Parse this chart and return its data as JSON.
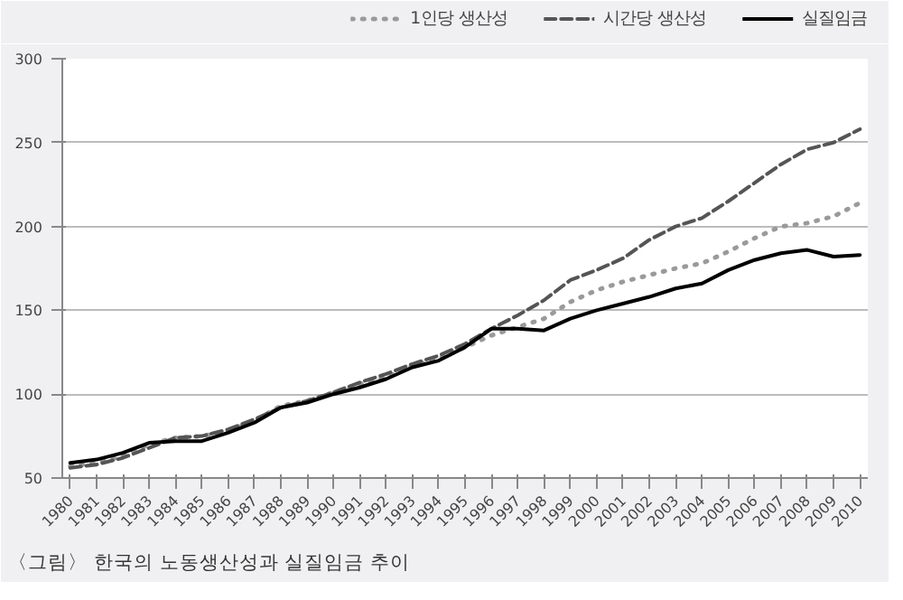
{
  "chart_data": {
    "type": "line",
    "categories": [
      "1980",
      "1981",
      "1982",
      "1983",
      "1984",
      "1985",
      "1986",
      "1987",
      "1988",
      "1989",
      "1990",
      "1991",
      "1992",
      "1993",
      "1994",
      "1995",
      "1996",
      "1997",
      "1998",
      "1999",
      "2000",
      "2001",
      "2002",
      "2003",
      "2004",
      "2005",
      "2006",
      "2007",
      "2008",
      "2009",
      "2010"
    ],
    "series": [
      {
        "name": "1인당 생산성",
        "color": "#9a9a9a",
        "line_style": "dotted",
        "values": [
          57,
          59,
          63,
          70,
          74,
          75,
          78,
          84,
          93,
          96,
          101,
          106,
          110,
          117,
          121,
          128,
          135,
          140,
          145,
          155,
          162,
          167,
          171,
          175,
          178,
          185,
          193,
          200,
          202,
          206,
          214
        ]
      },
      {
        "name": "시간당 생산성",
        "color": "#555555",
        "line_style": "dashed",
        "values": [
          56,
          58,
          62,
          68,
          74,
          75,
          79,
          85,
          92,
          96,
          101,
          107,
          112,
          118,
          123,
          130,
          139,
          147,
          156,
          168,
          174,
          181,
          192,
          200,
          205,
          215,
          226,
          237,
          246,
          250,
          258
        ]
      },
      {
        "name": "실질임금",
        "color": "#000000",
        "line_style": "solid",
        "values": [
          59,
          61,
          65,
          71,
          72,
          72,
          77,
          83,
          92,
          95,
          100,
          104,
          109,
          116,
          120,
          128,
          139,
          139,
          138,
          145,
          150,
          154,
          158,
          163,
          166,
          174,
          180,
          184,
          186,
          182,
          183
        ]
      }
    ],
    "ylim": [
      50,
      300
    ],
    "yticks": [
      50,
      100,
      150,
      200,
      250,
      300
    ],
    "grid": "y",
    "legend": "top right",
    "annotations": [
      "〈그림〉 한국의 노동생산성과 실질임금 추이"
    ]
  }
}
